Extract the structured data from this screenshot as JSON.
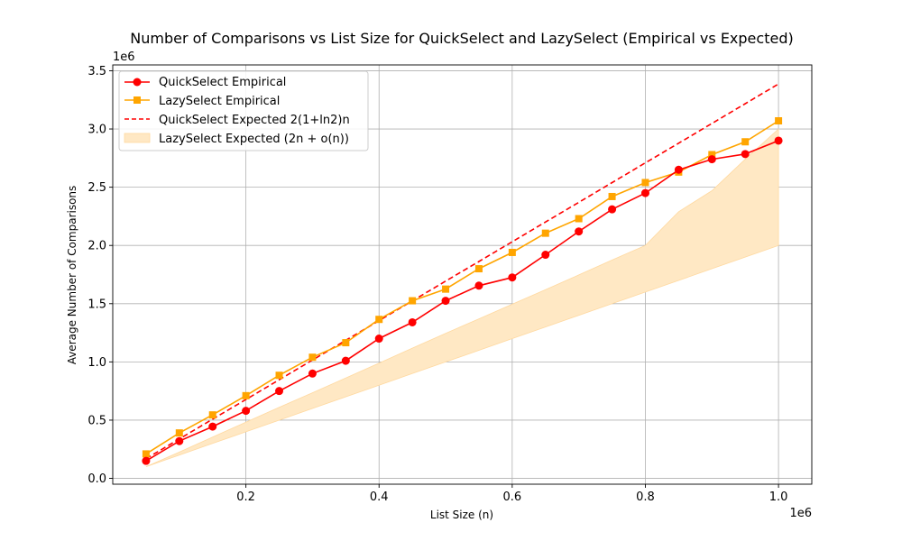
{
  "chart_data": {
    "type": "line",
    "title": "Number of Comparisons vs List Size for QuickSelect and LazySelect (Empirical vs Expected)",
    "xlabel": "List Size (n)",
    "ylabel": "Average Number of Comparisons",
    "x_offset_label": "1e6",
    "y_offset_label": "1e6",
    "xlim": [
      0,
      1050000
    ],
    "ylim": [
      -50000,
      3550000
    ],
    "x_ticks": [
      200000,
      400000,
      600000,
      800000,
      1000000
    ],
    "x_tick_labels": [
      "0.2",
      "0.4",
      "0.6",
      "0.8",
      "1.0"
    ],
    "y_ticks": [
      0,
      500000,
      1000000,
      1500000,
      2000000,
      2500000,
      3000000,
      3500000
    ],
    "y_tick_labels": [
      "0.0",
      "0.5",
      "1.0",
      "1.5",
      "2.0",
      "2.5",
      "3.0",
      "3.5"
    ],
    "grid": true,
    "legend_position": "top-left",
    "x": [
      50000,
      100000,
      150000,
      200000,
      250000,
      300000,
      350000,
      400000,
      450000,
      500000,
      550000,
      600000,
      650000,
      700000,
      750000,
      800000,
      850000,
      900000,
      950000,
      1000000
    ],
    "series": [
      {
        "name": "QuickSelect Empirical",
        "style": "line-marker-circle",
        "color": "#ff0000",
        "values": [
          150000,
          320000,
          445000,
          580000,
          750000,
          900000,
          1010000,
          1200000,
          1340000,
          1525000,
          1655000,
          1725000,
          1920000,
          2120000,
          2310000,
          2450000,
          2650000,
          2740000,
          2785000,
          2900000
        ]
      },
      {
        "name": "LazySelect Empirical",
        "style": "line-marker-square",
        "color": "#ffa500",
        "values": [
          210000,
          390000,
          545000,
          710000,
          885000,
          1040000,
          1165000,
          1365000,
          1525000,
          1625000,
          1800000,
          1940000,
          2105000,
          2230000,
          2420000,
          2540000,
          2630000,
          2780000,
          2890000,
          3070000
        ]
      },
      {
        "name": "QuickSelect Expected 2(1+ln2)n",
        "style": "dashed-line",
        "color": "#ff0000",
        "values": [
          169315,
          338629,
          507944,
          677259,
          846574,
          1015888,
          1185203,
          1354518,
          1523832,
          1693147,
          1862462,
          2031777,
          2201091,
          2370406,
          2539721,
          2709035,
          2878350,
          3047665,
          3216979,
          3386294
        ]
      }
    ],
    "band": {
      "name": "LazySelect Expected (2n + o(n))",
      "color": "#ffe8c4",
      "edge_color": "#ffd9a0",
      "lower": [
        100000,
        200000,
        300000,
        400000,
        500000,
        600000,
        700000,
        800000,
        900000,
        1000000,
        1100000,
        1200000,
        1300000,
        1400000,
        1500000,
        1600000,
        1700000,
        1800000,
        1900000,
        2000000
      ],
      "upper": [
        100000,
        226000,
        355000,
        483000,
        610000,
        735000,
        862000,
        990000,
        1118000,
        1245000,
        1370000,
        1495000,
        1620000,
        1747000,
        1875000,
        2000000,
        2290000,
        2470000,
        2740000,
        3000000
      ]
    }
  }
}
